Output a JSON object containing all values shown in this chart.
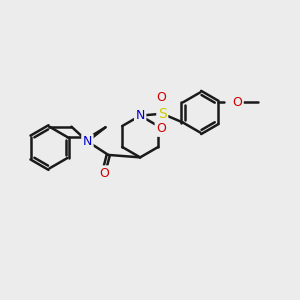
{
  "bg_color": "#ececec",
  "bond_color": "#1a1a1a",
  "n_color": "#0000cc",
  "o_color": "#cc0000",
  "s_color": "#cccc00",
  "bond_width": 1.8,
  "figsize": [
    3.0,
    3.0
  ],
  "dpi": 100,
  "xlim": [
    0,
    12
  ],
  "ylim": [
    0,
    10
  ]
}
